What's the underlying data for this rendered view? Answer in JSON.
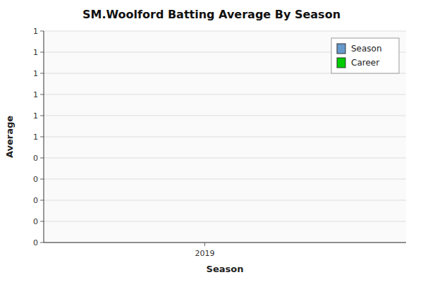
{
  "chart_data": {
    "type": "bar",
    "title": "SM.Woolford Batting Average By Season",
    "x_label": "Season",
    "y_label": "Average",
    "xlim": [
      2018.6,
      2019.5
    ],
    "xticks": [
      2019
    ],
    "ylim": [
      0.0,
      1.0
    ],
    "yticks": [
      0,
      {
        "value": 0.1,
        "label": "0"
      },
      {
        "value": 0.2,
        "label": "0"
      },
      {
        "value": 0.3,
        "label": "0"
      },
      {
        "value": 0.4,
        "label": "0"
      },
      {
        "value": 0.5,
        "label": "1"
      },
      {
        "value": 0.6,
        "label": "1"
      },
      {
        "value": 0.7,
        "label": "1"
      },
      {
        "value": 0.8,
        "label": "1"
      },
      {
        "value": 0.9,
        "label": "1"
      },
      1
    ],
    "grid": true,
    "legend": "upper right",
    "series": [
      {
        "name": "Season",
        "color": "#6699cc",
        "values": []
      },
      {
        "name": "Career",
        "color": "#00cc00",
        "values": []
      }
    ]
  }
}
